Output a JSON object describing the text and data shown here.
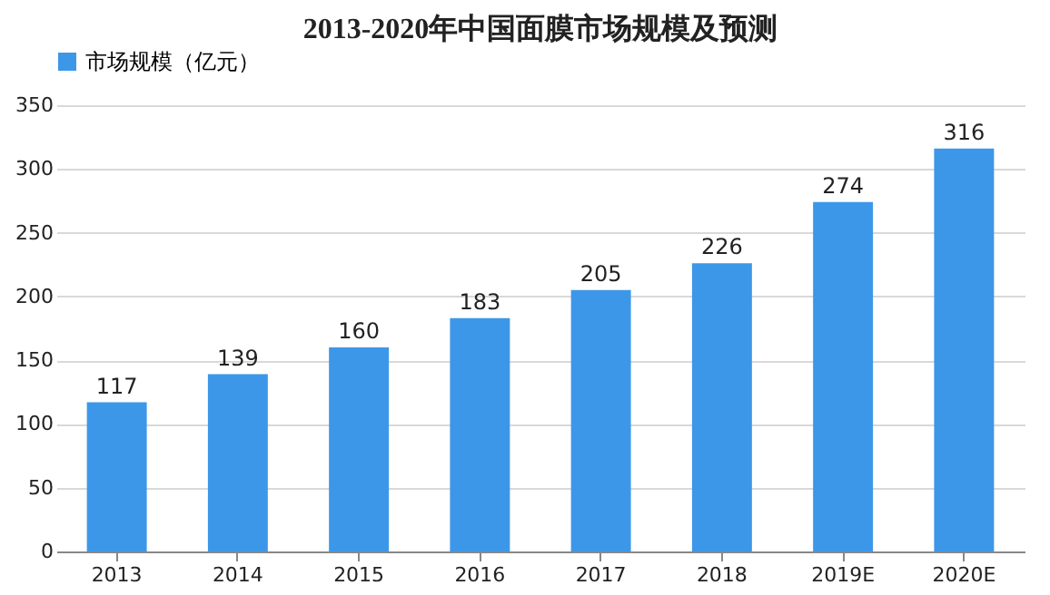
{
  "chart_data": {
    "type": "bar",
    "title": "2013-2020年中国面膜市场规模及预测",
    "categories": [
      "2013",
      "2014",
      "2015",
      "2016",
      "2017",
      "2018",
      "2019E",
      "2020E"
    ],
    "series": [
      {
        "name": "市场规模（亿元）",
        "color": "#3d97e8",
        "values": [
          117,
          139,
          160,
          183,
          205,
          226,
          274,
          316
        ]
      }
    ],
    "ylim": [
      0,
      350
    ],
    "yticks": [
      0,
      50,
      100,
      150,
      200,
      250,
      300,
      350
    ],
    "grid": "y",
    "legend": "top",
    "data_labels": true
  }
}
